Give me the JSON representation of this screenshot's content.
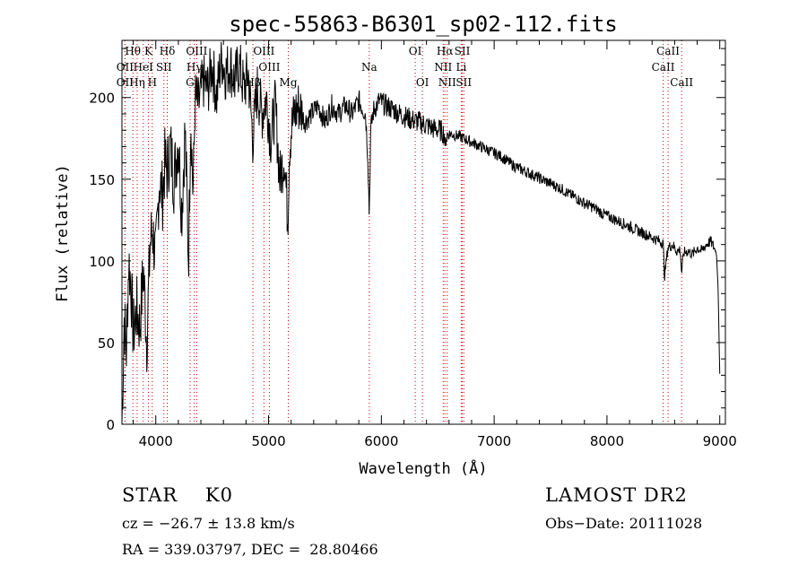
{
  "chart_data": {
    "type": "line",
    "title": "spec-55863-B6301_sp02-112.fits",
    "xlabel": "Wavelength (Å)",
    "ylabel": "Flux (relative)",
    "xlim": [
      3700,
      9050
    ],
    "ylim": [
      0,
      235
    ],
    "xticks": [
      4000,
      5000,
      6000,
      7000,
      8000,
      9000
    ],
    "yticks": [
      0,
      50,
      100,
      150,
      200
    ],
    "grid": false,
    "series": [
      {
        "values_x": [
          3700,
          3720,
          3740,
          3760,
          3780,
          3800,
          3830,
          3860,
          3890,
          3920,
          3950,
          3970,
          4000,
          4030,
          4060,
          4080,
          4100,
          4130,
          4160,
          4200,
          4230,
          4260,
          4290,
          4310,
          4330,
          4350,
          4380,
          4420,
          4460,
          4500,
          4540,
          4580,
          4620,
          4660,
          4700,
          4740,
          4780,
          4820,
          4860,
          4900,
          4940,
          4980,
          5020,
          5060,
          5100,
          5140,
          5170,
          5185,
          5200,
          5230,
          5270,
          5320,
          5380,
          5440,
          5500,
          5560,
          5620,
          5680,
          5740,
          5800,
          5860,
          5880,
          5893,
          5905,
          5930,
          5980,
          6040,
          6100,
          6160,
          6220,
          6280,
          6340,
          6400,
          6460,
          6520,
          6560,
          6563,
          6570,
          6600,
          6650,
          6700,
          6760,
          6820,
          6880,
          6940,
          7000,
          7060,
          7120,
          7180,
          7240,
          7300,
          7360,
          7420,
          7480,
          7540,
          7600,
          7660,
          7720,
          7780,
          7840,
          7900,
          7960,
          8020,
          8080,
          8140,
          8200,
          8260,
          8320,
          8380,
          8440,
          8498,
          8510,
          8540,
          8580,
          8620,
          8650,
          8662,
          8680,
          8720,
          8760,
          8800,
          8840,
          8880,
          8920,
          8950,
          8970,
          8985,
          9000
        ],
        "values_y": [
          0,
          65,
          45,
          100,
          85,
          55,
          70,
          60,
          95,
          50,
          110,
          120,
          100,
          150,
          140,
          160,
          155,
          170,
          150,
          175,
          130,
          180,
          100,
          190,
          140,
          200,
          195,
          210,
          205,
          220,
          200,
          225,
          215,
          220,
          210,
          220,
          205,
          215,
          175,
          205,
          190,
          200,
          175,
          195,
          150,
          165,
          125,
          170,
          180,
          190,
          195,
          185,
          190,
          195,
          185,
          195,
          190,
          195,
          190,
          198,
          190,
          165,
          128,
          180,
          192,
          198,
          195,
          193,
          190,
          188,
          186,
          185,
          183,
          181,
          180,
          178,
          162,
          176,
          178,
          177,
          176,
          174,
          172,
          170,
          168,
          166,
          164,
          161,
          158,
          156,
          154,
          152,
          150,
          148,
          146,
          144,
          141,
          139,
          136,
          134,
          132,
          129,
          127,
          125,
          123,
          121,
          119,
          117,
          115,
          113,
          111,
          90,
          108,
          110,
          106,
          107,
          92,
          105,
          106,
          104,
          108,
          106,
          110,
          112,
          108,
          105,
          85,
          30
        ]
      }
    ],
    "lines": [
      {
        "label": "Hθ",
        "wl": 3797,
        "row": 1
      },
      {
        "label": "OII",
        "wl": 3727,
        "row": 2
      },
      {
        "label": "OII",
        "wl": 3727,
        "row": 3
      },
      {
        "label": "Hη",
        "wl": 3835,
        "row": 3
      },
      {
        "label": "K",
        "wl": 3934,
        "row": 1
      },
      {
        "label": "HeI",
        "wl": 3889,
        "row": 2
      },
      {
        "label": "H",
        "wl": 3969,
        "row": 3
      },
      {
        "label": "SII",
        "wl": 4072,
        "row": 2
      },
      {
        "label": "Hδ",
        "wl": 4102,
        "row": 1
      },
      {
        "label": "OIII",
        "wl": 4363,
        "row": 1
      },
      {
        "label": "Hγ",
        "wl": 4341,
        "row": 2
      },
      {
        "label": "G",
        "wl": 4304,
        "row": 3
      },
      {
        "label": "Hβ",
        "wl": 4861,
        "row": 3
      },
      {
        "label": "OIII",
        "wl": 4959,
        "row": 1
      },
      {
        "label": "OIII",
        "wl": 5007,
        "row": 2
      },
      {
        "label": "Mg",
        "wl": 5175,
        "row": 3
      },
      {
        "label": "Na",
        "wl": 5893,
        "row": 2
      },
      {
        "label": "OI",
        "wl": 6300,
        "row": 1
      },
      {
        "label": "OI",
        "wl": 6364,
        "row": 3
      },
      {
        "label": "Hα",
        "wl": 6563,
        "row": 1
      },
      {
        "label": "SII",
        "wl": 6717,
        "row": 1
      },
      {
        "label": "NII",
        "wl": 6548,
        "row": 2
      },
      {
        "label": "Li",
        "wl": 6708,
        "row": 2
      },
      {
        "label": "NII",
        "wl": 6584,
        "row": 3
      },
      {
        "label": "SII",
        "wl": 6731,
        "row": 3
      },
      {
        "label": "CaII",
        "wl": 8542,
        "row": 1
      },
      {
        "label": "CaII",
        "wl": 8498,
        "row": 2
      },
      {
        "label": "CaII",
        "wl": 8662,
        "row": 3
      }
    ]
  },
  "footer": {
    "object_class": "STAR    K0",
    "survey": "LAMOST DR2",
    "cz": "cz = −26.7 ± 13.8 km/s",
    "obs_date": "Obs−Date: 20111028",
    "radec": "RA = 339.03797, DEC =  28.80466"
  },
  "colors": {
    "line_marker": "#c00000",
    "spectrum": "#000000"
  }
}
